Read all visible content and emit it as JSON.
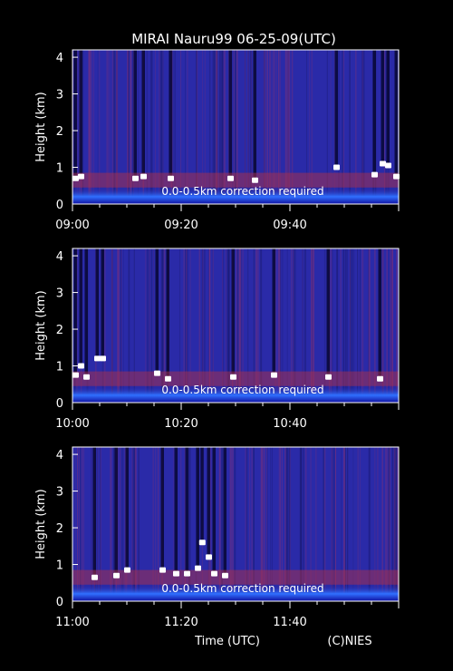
{
  "title": "MIRAI Nauru99 06-25-09(UTC)",
  "xlabel": "Time (UTC)",
  "credit": "(C)NIES",
  "colors": {
    "background": "#000000",
    "text": "#ffffff",
    "noise": "#2a2aa8",
    "aerosol": "#a03050",
    "cloud": "#ffffff",
    "surface": "#2060ff"
  },
  "chart_data": [
    {
      "type": "heatmap",
      "ylabel": "Height (km)",
      "ylim": [
        0,
        4.2
      ],
      "y_ticks": [
        "0",
        "1",
        "2",
        "3",
        "4"
      ],
      "xlim_minutes": [
        0,
        60
      ],
      "x_ticks": [
        {
          "label": "09:00",
          "minute": 0
        },
        {
          "label": "09:20",
          "minute": 20
        },
        {
          "label": "09:40",
          "minute": 40
        }
      ],
      "annotation": "0.0-0.5km correction required",
      "cloud_base_km": [
        {
          "minute": 0.5,
          "height_km": 0.7
        },
        {
          "minute": 1.5,
          "height_km": 0.75
        },
        {
          "minute": 11.5,
          "height_km": 0.7
        },
        {
          "minute": 13,
          "height_km": 0.75
        },
        {
          "minute": 18,
          "height_km": 0.7
        },
        {
          "minute": 29,
          "height_km": 0.7
        },
        {
          "minute": 33.5,
          "height_km": 0.65
        },
        {
          "minute": 48.5,
          "height_km": 1.0
        },
        {
          "minute": 55.5,
          "height_km": 0.8
        },
        {
          "minute": 57,
          "height_km": 1.1
        },
        {
          "minute": 58,
          "height_km": 1.05
        },
        {
          "minute": 59.5,
          "height_km": 0.75
        }
      ]
    },
    {
      "type": "heatmap",
      "ylabel": "Height (km)",
      "ylim": [
        0,
        4.2
      ],
      "y_ticks": [
        "0",
        "1",
        "2",
        "3",
        "4"
      ],
      "xlim_minutes": [
        0,
        60
      ],
      "x_ticks": [
        {
          "label": "10:00",
          "minute": 0
        },
        {
          "label": "10:20",
          "minute": 20
        },
        {
          "label": "10:40",
          "minute": 40
        }
      ],
      "annotation": "0.0-0.5km correction required",
      "cloud_base_km": [
        {
          "minute": 0.5,
          "height_km": 0.75
        },
        {
          "minute": 1.5,
          "height_km": 1.0
        },
        {
          "minute": 2.5,
          "height_km": 0.7
        },
        {
          "minute": 4.5,
          "height_km": 1.2
        },
        {
          "minute": 5.5,
          "height_km": 1.2
        },
        {
          "minute": 15.5,
          "height_km": 0.8
        },
        {
          "minute": 17.5,
          "height_km": 0.65
        },
        {
          "minute": 29.5,
          "height_km": 0.7
        },
        {
          "minute": 37,
          "height_km": 0.75
        },
        {
          "minute": 47,
          "height_km": 0.7
        },
        {
          "minute": 56.5,
          "height_km": 0.65
        }
      ]
    },
    {
      "type": "heatmap",
      "ylabel": "Height (km)",
      "ylim": [
        0,
        4.2
      ],
      "y_ticks": [
        "0",
        "1",
        "2",
        "3",
        "4"
      ],
      "xlim_minutes": [
        0,
        60
      ],
      "x_ticks": [
        {
          "label": "11:00",
          "minute": 0
        },
        {
          "label": "11:20",
          "minute": 20
        },
        {
          "label": "11:40",
          "minute": 40
        }
      ],
      "annotation": "0.0-0.5km correction required",
      "cloud_base_km": [
        {
          "minute": 4,
          "height_km": 0.65
        },
        {
          "minute": 8,
          "height_km": 0.7
        },
        {
          "minute": 10,
          "height_km": 0.85
        },
        {
          "minute": 16.5,
          "height_km": 0.85
        },
        {
          "minute": 19,
          "height_km": 0.75
        },
        {
          "minute": 21,
          "height_km": 0.75
        },
        {
          "minute": 23,
          "height_km": 0.9
        },
        {
          "minute": 23.8,
          "height_km": 1.6
        },
        {
          "minute": 25,
          "height_km": 1.2
        },
        {
          "minute": 26,
          "height_km": 0.75
        },
        {
          "minute": 28,
          "height_km": 0.7
        }
      ]
    }
  ]
}
